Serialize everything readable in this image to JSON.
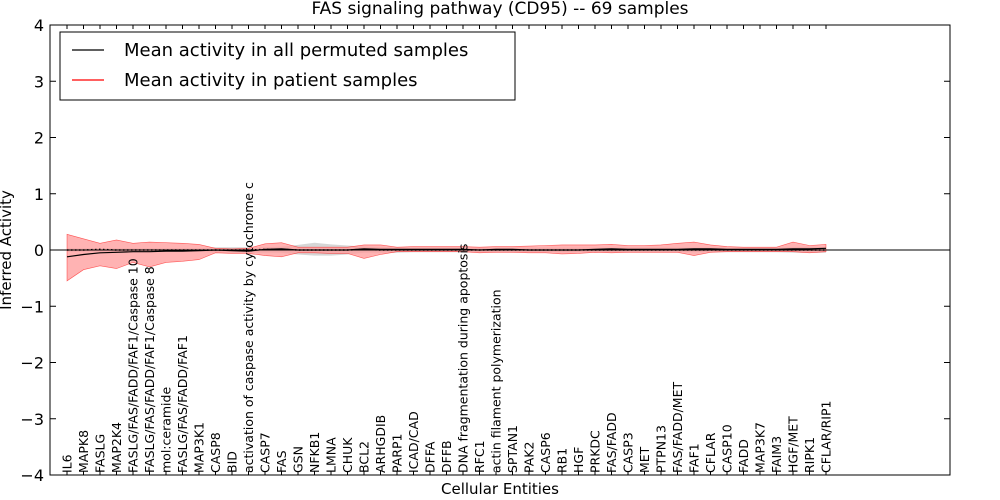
{
  "chart_data": {
    "type": "line",
    "title": "FAS signaling pathway (CD95) -- 69 samples",
    "xlabel": "Cellular Entities",
    "ylabel": "Inferred Activity",
    "ylim": [
      -4,
      4
    ],
    "yticks": [
      4,
      3,
      2,
      1,
      0,
      -1,
      -2,
      -3,
      -4
    ],
    "ytick_labels": [
      "4",
      "3",
      "2",
      "1",
      "0",
      "−1",
      "−2",
      "−3",
      "−4"
    ],
    "grid": false,
    "legend_position": "top-left",
    "categories": [
      "IL6",
      "MAPK8",
      "FASLG",
      "MAP2K4",
      "FASLG/FAS/FADD/FAF1/Caspase 10",
      "FASLG/FAS/FADD/FAF1/Caspase 8",
      "mol:ceramide",
      "FASLG/FAS/FADD/FAF1",
      "MAP3K1",
      "CASP8",
      "BID",
      "activation of caspase activity by cytochrome c",
      "CASP7",
      "FAS",
      "GSN",
      "NFKB1",
      "LMNA",
      "CHUK",
      "BCL2",
      "ARHGDIB",
      "PARP1",
      "ICAD/CAD",
      "DFFA",
      "DFFB",
      "DNA fragmentation during apoptosis",
      "RFC1",
      "actin filament polymerization",
      "SPTAN1",
      "PAK2",
      "CASP6",
      "RB1",
      "HGF",
      "PRKDC",
      "FAS/FADD",
      "CASP3",
      "MET",
      "PTPN13",
      "FAS/FADD/MET",
      "FAF1",
      "CFLAR",
      "CASP10",
      "FADD",
      "MAP3K7",
      "FAIM3",
      "HGF/MET",
      "RIPK1",
      "CFLAR/RIP1"
    ],
    "series": [
      {
        "name": "Mean activity in all permuted samples",
        "color": "#000000",
        "style": "dotted",
        "values": [
          0.0,
          0.0,
          0.01,
          0.0,
          0.0,
          0.0,
          0.0,
          0.0,
          0.0,
          0.0,
          0.0,
          0.0,
          0.01,
          0.01,
          0.0,
          0.0,
          0.0,
          0.0,
          0.01,
          0.0,
          0.0,
          0.0,
          0.0,
          0.0,
          0.0,
          0.0,
          0.0,
          0.0,
          0.0,
          0.0,
          0.0,
          0.0,
          0.0,
          0.0,
          0.0,
          0.0,
          0.0,
          0.0,
          0.0,
          0.0,
          0.0,
          0.0,
          0.0,
          0.0,
          0.0,
          0.0,
          0.0
        ],
        "lower": [
          -0.03,
          -0.03,
          -0.03,
          -0.03,
          -0.03,
          -0.03,
          -0.03,
          -0.03,
          -0.03,
          -0.05,
          -0.05,
          -0.05,
          -0.05,
          -0.05,
          -0.08,
          -0.1,
          -0.1,
          -0.08,
          -0.05,
          -0.05,
          -0.05,
          -0.04,
          -0.04,
          -0.04,
          -0.04,
          -0.04,
          -0.04,
          -0.04,
          -0.04,
          -0.04,
          -0.04,
          -0.04,
          -0.04,
          -0.04,
          -0.04,
          -0.04,
          -0.04,
          -0.04,
          -0.04,
          -0.04,
          -0.04,
          -0.04,
          -0.04,
          -0.04,
          -0.05,
          -0.05,
          -0.05
        ],
        "upper": [
          0.03,
          0.03,
          0.03,
          0.03,
          0.03,
          0.03,
          0.03,
          0.03,
          0.03,
          0.05,
          0.05,
          0.05,
          0.05,
          0.06,
          0.09,
          0.13,
          0.1,
          0.08,
          0.06,
          0.05,
          0.05,
          0.04,
          0.04,
          0.04,
          0.04,
          0.04,
          0.04,
          0.04,
          0.04,
          0.04,
          0.04,
          0.04,
          0.04,
          0.04,
          0.04,
          0.04,
          0.04,
          0.04,
          0.04,
          0.04,
          0.04,
          0.04,
          0.04,
          0.04,
          0.05,
          0.06,
          0.05
        ]
      },
      {
        "name": "Mean activity in patient samples",
        "color": "#ff0000",
        "line_color": "#000000",
        "fill": "#ff9999",
        "values": [
          -0.12,
          -0.08,
          -0.05,
          -0.04,
          -0.03,
          -0.03,
          -0.02,
          -0.02,
          -0.01,
          0.0,
          -0.01,
          -0.02,
          0.01,
          0.02,
          0.0,
          0.0,
          0.0,
          0.0,
          0.02,
          0.01,
          0.01,
          0.01,
          0.01,
          0.01,
          0.01,
          0.0,
          0.01,
          0.01,
          0.0,
          0.0,
          0.0,
          0.0,
          0.01,
          0.02,
          0.01,
          0.01,
          0.01,
          0.01,
          0.02,
          0.02,
          0.01,
          0.01,
          0.01,
          0.01,
          0.02,
          0.02,
          0.03
        ],
        "lower": [
          -0.55,
          -0.35,
          -0.28,
          -0.33,
          -0.22,
          -0.3,
          -0.22,
          -0.2,
          -0.17,
          -0.05,
          -0.06,
          -0.06,
          -0.1,
          -0.12,
          -0.05,
          -0.05,
          -0.06,
          -0.06,
          -0.15,
          -0.08,
          -0.03,
          -0.03,
          -0.03,
          -0.03,
          -0.03,
          -0.05,
          -0.04,
          -0.04,
          -0.05,
          -0.05,
          -0.07,
          -0.06,
          -0.04,
          -0.05,
          -0.04,
          -0.04,
          -0.04,
          -0.04,
          -0.1,
          -0.04,
          -0.03,
          -0.03,
          -0.03,
          -0.03,
          -0.03,
          -0.05,
          -0.03
        ],
        "upper": [
          0.28,
          0.2,
          0.12,
          0.18,
          0.12,
          0.14,
          0.13,
          0.12,
          0.1,
          0.03,
          0.02,
          0.03,
          0.11,
          0.13,
          0.05,
          0.05,
          0.05,
          0.05,
          0.09,
          0.09,
          0.05,
          0.06,
          0.06,
          0.06,
          0.06,
          0.05,
          0.06,
          0.06,
          0.07,
          0.08,
          0.09,
          0.09,
          0.09,
          0.1,
          0.08,
          0.08,
          0.09,
          0.12,
          0.14,
          0.09,
          0.06,
          0.05,
          0.05,
          0.05,
          0.14,
          0.08,
          0.1
        ]
      }
    ]
  }
}
